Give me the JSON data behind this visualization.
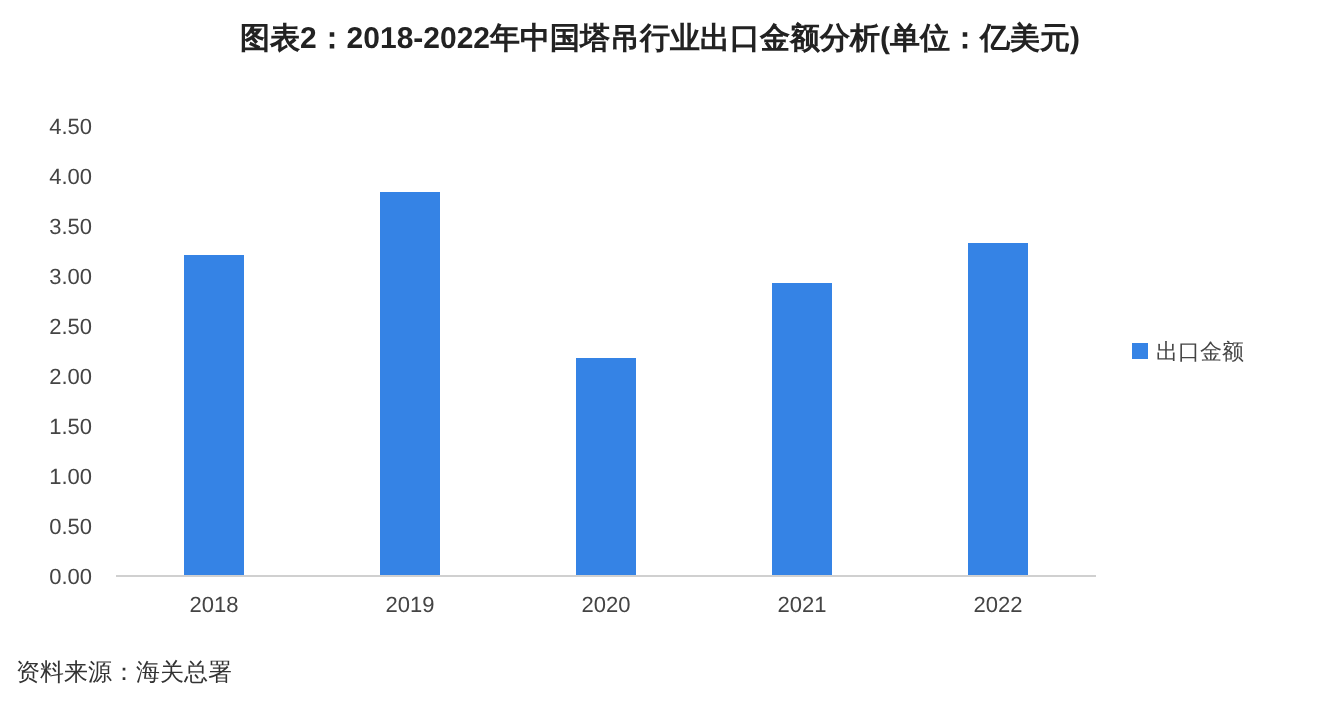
{
  "chart_data": {
    "type": "bar",
    "title": "图表2：2018-2022年中国塔吊行业出口金额分析(单位：亿美元)",
    "categories": [
      "2018",
      "2019",
      "2020",
      "2021",
      "2022"
    ],
    "series": [
      {
        "name": "出口金额",
        "color": "#3583e5",
        "values": [
          3.21,
          3.84,
          2.18,
          2.93,
          3.33
        ]
      }
    ],
    "ylim": [
      0,
      4.5
    ],
    "yticks": [
      {
        "value": 0,
        "label": "0.00"
      },
      {
        "value": 0.5,
        "label": "0.50"
      },
      {
        "value": 1,
        "label": "1.00"
      },
      {
        "value": 1.5,
        "label": "1.50"
      },
      {
        "value": 2,
        "label": "2.00"
      },
      {
        "value": 2.5,
        "label": "2.50"
      },
      {
        "value": 3,
        "label": "3.00"
      },
      {
        "value": 3.5,
        "label": "3.50"
      },
      {
        "value": 4,
        "label": "4.00"
      },
      {
        "value": 4.5,
        "label": "4.50"
      }
    ],
    "grid": false,
    "legend": "right",
    "annotations": [
      "资料来源：海关总署"
    ]
  }
}
